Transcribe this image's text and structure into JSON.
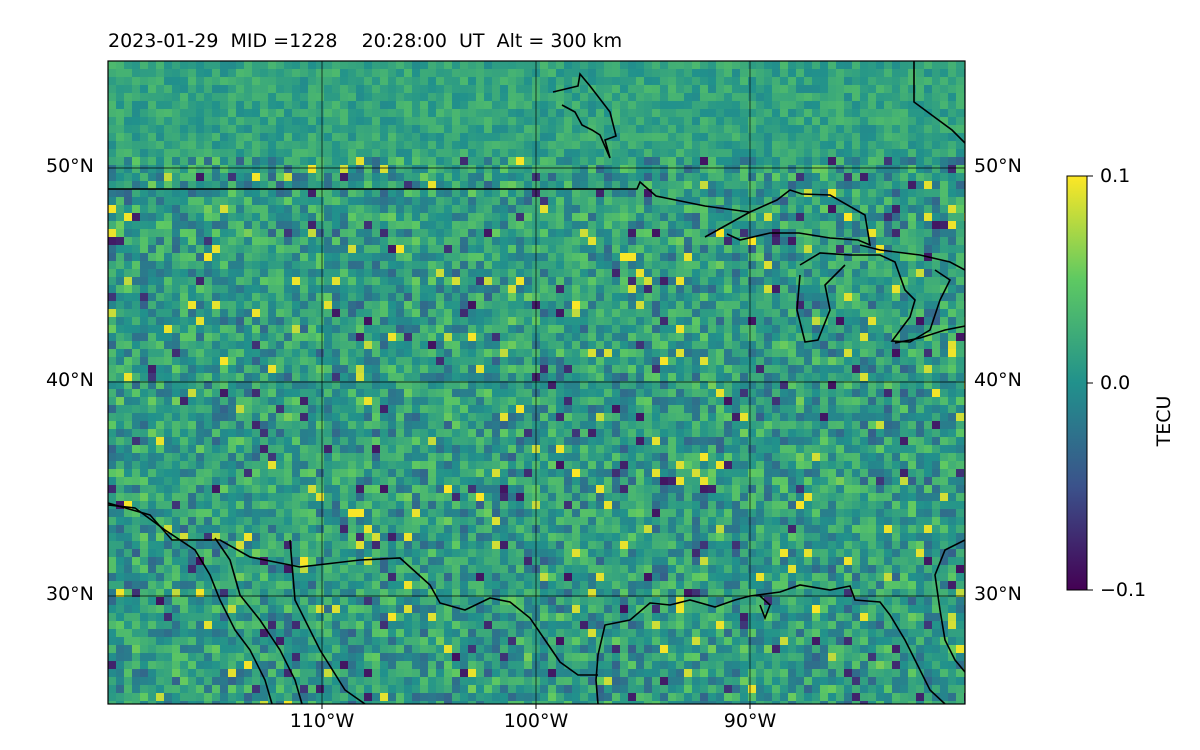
{
  "title": "2023-01-29  MID =1228    20:28:00  UT  Alt = 300 km",
  "map": {
    "lat_ticks": [
      "50°N",
      "40°N",
      "30°N"
    ],
    "lon_ticks": [
      "110°W",
      "100°W",
      "90°W"
    ],
    "lon_range": [
      -120,
      -80
    ],
    "lat_range": [
      25,
      55
    ]
  },
  "colorbar": {
    "label": "TECU",
    "ticks": [
      "0.1",
      "0.0",
      "−0.1"
    ],
    "vmin": -0.1,
    "vmax": 0.1,
    "colormap": "viridis",
    "colors": [
      "#440154",
      "#3b528b",
      "#21918c",
      "#5ec962",
      "#fde725"
    ]
  }
}
